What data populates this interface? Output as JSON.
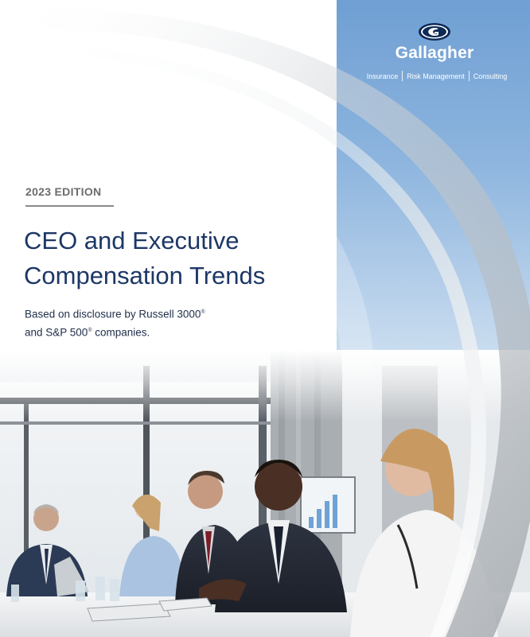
{
  "brand": {
    "name": "Gallagher",
    "services": [
      "Insurance",
      "Risk Management",
      "Consulting"
    ],
    "logo_icon": "gallagher-g-logo-icon"
  },
  "cover": {
    "edition": "2023 EDITION",
    "title_line1": "CEO and Executive",
    "title_line2": "Compensation Trends",
    "subtitle_line1": "Based on disclosure by Russell 3000",
    "subtitle_line2_a": "and S&P 500",
    "subtitle_line2_b": " companies.",
    "registered_mark": "®"
  },
  "colors": {
    "title_navy": "#1d3766",
    "panel_blue": "#6f9fd3",
    "edition_gray": "#6b6b6b"
  }
}
